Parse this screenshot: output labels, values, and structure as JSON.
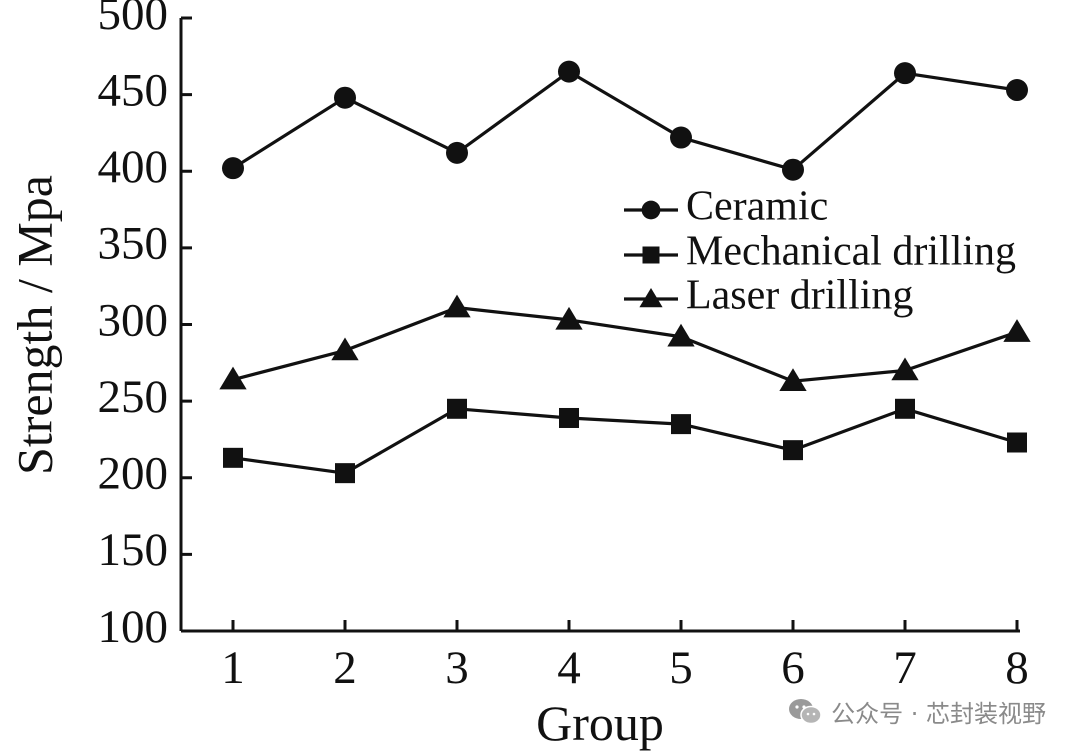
{
  "chart_data": {
    "type": "line",
    "title": "",
    "xlabel": "Group",
    "ylabel": "Strength / Mpa",
    "categories": [
      "1",
      "2",
      "3",
      "4",
      "5",
      "6",
      "7",
      "8"
    ],
    "ylim": [
      100,
      500
    ],
    "yticks": [
      "100",
      "150",
      "200",
      "250",
      "300",
      "350",
      "400",
      "450",
      "500"
    ],
    "grid": false,
    "legend_position": "right",
    "series": [
      {
        "name": "Ceramic",
        "marker": "circle",
        "values": [
          402,
          448,
          412,
          465,
          422,
          401,
          464,
          453
        ]
      },
      {
        "name": "Mechanical drilling",
        "marker": "square",
        "values": [
          213,
          203,
          245,
          239,
          235,
          218,
          245,
          223
        ]
      },
      {
        "name": "Laser drilling",
        "marker": "triangle",
        "values": [
          264,
          283,
          311,
          303,
          292,
          263,
          270,
          295
        ]
      }
    ],
    "colors": {
      "line": "#111111",
      "background": "#ffffff"
    }
  },
  "watermark": {
    "icon": "wechat-logo-icon",
    "text": "公众号 · 芯封装视野"
  }
}
